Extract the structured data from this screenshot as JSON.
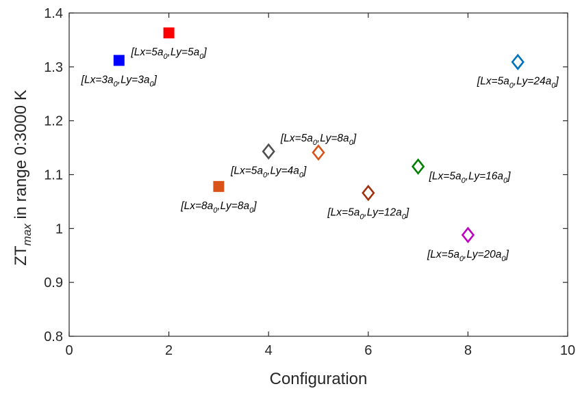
{
  "chart_data": {
    "type": "scatter",
    "xlabel": "Configuration",
    "ylabel": {
      "base": "ZT",
      "subscript": "max",
      "rest": " in range 0:3000 K"
    },
    "xlim": [
      0,
      10
    ],
    "ylim": [
      0.8,
      1.4
    ],
    "xticks": [
      0,
      2,
      4,
      6,
      8,
      10
    ],
    "yticks": [
      0.8,
      0.9,
      1,
      1.1,
      1.2,
      1.3,
      1.4
    ],
    "xtick_labels": [
      "0",
      "2",
      "4",
      "6",
      "8",
      "10"
    ],
    "ytick_labels": [
      "0.8",
      "0.9",
      "1",
      "1.1",
      "1.2",
      "1.3",
      "1.4"
    ],
    "grid": false,
    "points": [
      {
        "x": 1,
        "y": 1.312,
        "marker": "square",
        "color": "#0000ff",
        "label": {
          "lx": "3",
          "ly": "3"
        },
        "label_pos": "below"
      },
      {
        "x": 2,
        "y": 1.363,
        "marker": "square",
        "color": "#ff0000",
        "label": {
          "lx": "5",
          "ly": "5"
        },
        "label_pos": "below"
      },
      {
        "x": 3,
        "y": 1.078,
        "marker": "square",
        "color": "#d95319",
        "label": {
          "lx": "8",
          "ly": "8"
        },
        "label_pos": "below"
      },
      {
        "x": 4,
        "y": 1.143,
        "marker": "diamond",
        "color": "#505050",
        "label": {
          "lx": "5",
          "ly": "4"
        },
        "label_pos": "below"
      },
      {
        "x": 5,
        "y": 1.141,
        "marker": "diamond",
        "color": "#d95319",
        "label": {
          "lx": "5",
          "ly": "8"
        },
        "label_pos": "above"
      },
      {
        "x": 6,
        "y": 1.066,
        "marker": "diamond",
        "color": "#a2300e",
        "label": {
          "lx": "5",
          "ly": "12"
        },
        "label_pos": "below"
      },
      {
        "x": 7,
        "y": 1.115,
        "marker": "diamond",
        "color": "#008000",
        "label": {
          "lx": "5",
          "ly": "16"
        },
        "label_pos": "right"
      },
      {
        "x": 8,
        "y": 0.988,
        "marker": "diamond",
        "color": "#c000c0",
        "label": {
          "lx": "5",
          "ly": "20"
        },
        "label_pos": "below"
      },
      {
        "x": 9,
        "y": 1.309,
        "marker": "diamond",
        "color": "#0072bd",
        "label": {
          "lx": "5",
          "ly": "24"
        },
        "label_pos": "below"
      }
    ]
  }
}
